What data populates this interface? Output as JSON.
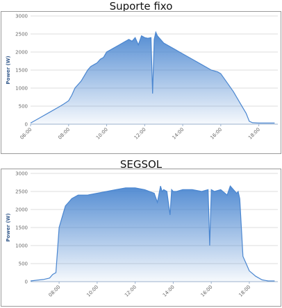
{
  "chart_data": [
    {
      "type": "area",
      "title": "Suporte fixo",
      "ylabel": "Power (W)",
      "xlabel": "",
      "ylim": [
        0,
        3000
      ],
      "y_ticks": [
        "0",
        "500",
        "1000",
        "1500",
        "2000",
        "2500",
        "3000"
      ],
      "x_ticks": [
        "06:00",
        "08:00",
        "10:00",
        "12:00",
        "14:00",
        "16:00",
        "18:00"
      ],
      "grid": true,
      "color": "#4a86d0",
      "series": [
        {
          "x": [
            "06:00",
            "06:30",
            "07:00",
            "07:30",
            "07:45",
            "08:00",
            "08:10",
            "08:20",
            "08:40",
            "08:50",
            "09:00",
            "09:10",
            "09:20",
            "09:30",
            "09:40",
            "09:50",
            "10:00",
            "10:10",
            "10:20",
            "10:40",
            "11:00",
            "11:10",
            "11:20",
            "11:30",
            "11:40",
            "11:50",
            "12:00",
            "12:10",
            "12:20",
            "12:25",
            "12:30",
            "12:35",
            "12:40",
            "12:45",
            "12:50",
            "13:00",
            "13:30",
            "14:00",
            "14:30",
            "15:00",
            "15:30",
            "15:50",
            "16:00",
            "16:20",
            "16:40",
            "17:00",
            "17:20",
            "17:30",
            "17:40",
            "18:00",
            "18:30",
            "18:50"
          ],
          "values": [
            30,
            180,
            330,
            480,
            560,
            650,
            800,
            1000,
            1200,
            1350,
            1500,
            1600,
            1650,
            1700,
            1800,
            1850,
            2000,
            2050,
            2100,
            2200,
            2300,
            2350,
            2300,
            2400,
            2200,
            2450,
            2400,
            2380,
            2400,
            850,
            2350,
            2550,
            2450,
            2400,
            2350,
            2250,
            2100,
            1950,
            1800,
            1650,
            1500,
            1450,
            1400,
            1150,
            900,
            600,
            300,
            80,
            40,
            30,
            30,
            30
          ]
        }
      ]
    },
    {
      "type": "area",
      "title": "SEGSOL",
      "ylabel": "Power (W)",
      "xlabel": "",
      "ylim": [
        0,
        3000
      ],
      "y_ticks": [
        "0",
        "500",
        "1000",
        "1500",
        "2000",
        "2500",
        "3000"
      ],
      "x_ticks": [
        "08:00",
        "10:00",
        "12:00",
        "14:00",
        "16:00",
        "18:00"
      ],
      "grid": true,
      "color": "#4a86d0",
      "series": [
        {
          "x": [
            "06:30",
            "06:50",
            "07:10",
            "07:30",
            "07:40",
            "07:50",
            "08:00",
            "08:10",
            "08:20",
            "08:30",
            "08:40",
            "08:50",
            "09:00",
            "09:30",
            "10:00",
            "10:30",
            "11:00",
            "11:30",
            "12:00",
            "12:30",
            "13:00",
            "13:10",
            "13:20",
            "13:25",
            "13:30",
            "13:40",
            "13:50",
            "13:55",
            "14:00",
            "14:10",
            "14:30",
            "15:00",
            "15:30",
            "15:50",
            "15:55",
            "16:00",
            "16:10",
            "16:30",
            "16:50",
            "17:00",
            "17:10",
            "17:20",
            "17:25",
            "17:30",
            "17:40",
            "17:50",
            "18:00",
            "18:20",
            "18:40",
            "19:00",
            "19:20"
          ],
          "values": [
            20,
            40,
            60,
            100,
            200,
            250,
            1500,
            1800,
            2100,
            2200,
            2300,
            2350,
            2400,
            2400,
            2450,
            2500,
            2550,
            2600,
            2600,
            2550,
            2450,
            2200,
            2650,
            2500,
            2550,
            2500,
            1850,
            2550,
            2500,
            2500,
            2550,
            2550,
            2500,
            2550,
            1000,
            2550,
            2500,
            2550,
            2400,
            2650,
            2550,
            2450,
            2500,
            2300,
            700,
            500,
            300,
            150,
            50,
            20,
            20
          ]
        }
      ]
    }
  ]
}
